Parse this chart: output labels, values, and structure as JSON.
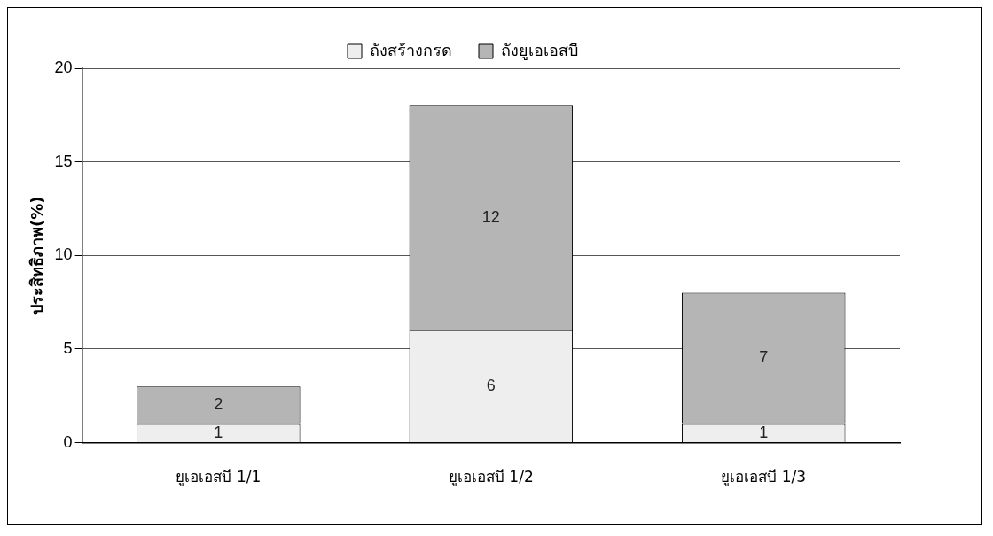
{
  "chart_data": {
    "type": "bar",
    "stacked": true,
    "ylabel": "ประสิทธิภาพ(%)",
    "categories": [
      "ยูเอเอสบี 1/1",
      "ยูเอเอสบี 1/2",
      "ยูเอเอสบี 1/3"
    ],
    "series": [
      {
        "name": "ถังสร้างกรด",
        "color": "#eeeeee",
        "values": [
          1,
          6,
          1
        ]
      },
      {
        "name": "ถังยูเอเอสบี",
        "color": "#b5b5b5",
        "values": [
          2,
          12,
          7
        ]
      }
    ],
    "ylim": [
      0,
      20
    ],
    "yticks": [
      0,
      5,
      10,
      15,
      20
    ],
    "grid": "y",
    "legend": "top",
    "data_labels": true
  }
}
